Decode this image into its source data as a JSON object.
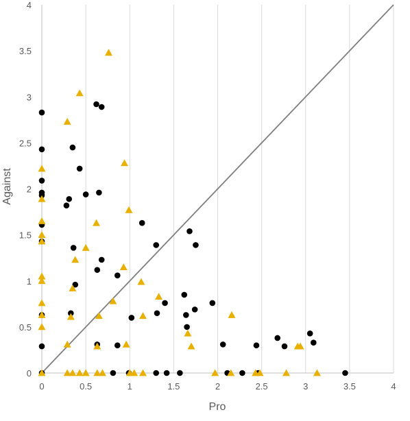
{
  "chart_data": {
    "type": "scatter",
    "xlabel": "Pro",
    "ylabel": "Against",
    "xlim": [
      0,
      4
    ],
    "ylim": [
      0,
      4
    ],
    "x_ticks": [
      "0",
      "0.5",
      "1",
      "1.5",
      "2",
      "2.5",
      "3",
      "3.5",
      "4"
    ],
    "y_ticks": [
      "0",
      "0.5",
      "1",
      "1.5",
      "2",
      "2.5",
      "3",
      "3.5",
      "4"
    ],
    "grid": "vertical",
    "reference_line": {
      "from": [
        0,
        0
      ],
      "to": [
        4,
        4
      ],
      "color": "#7f7f7f"
    },
    "colors": {
      "circle": "#000000",
      "triangle": "#e8b000",
      "grid": "#d9d9d9",
      "axis": "#bfbfbf",
      "text": "#595959"
    },
    "series": [
      {
        "marker": "circle",
        "points": [
          [
            0.0,
            2.83
          ],
          [
            0.0,
            2.43
          ],
          [
            0.0,
            2.09
          ],
          [
            0.0,
            1.96
          ],
          [
            0.0,
            1.93
          ],
          [
            0.0,
            1.61
          ],
          [
            0.0,
            1.43
          ],
          [
            0.0,
            0.63
          ],
          [
            0.0,
            0.29
          ],
          [
            0.0,
            0.0
          ],
          [
            0.28,
            1.82
          ],
          [
            0.31,
            1.89
          ],
          [
            0.33,
            0.65
          ],
          [
            0.35,
            2.45
          ],
          [
            0.36,
            1.36
          ],
          [
            0.38,
            0.96
          ],
          [
            0.43,
            2.22
          ],
          [
            0.5,
            1.94
          ],
          [
            0.62,
            2.92
          ],
          [
            0.63,
            1.12
          ],
          [
            0.63,
            0.31
          ],
          [
            0.65,
            1.96
          ],
          [
            0.68,
            1.23
          ],
          [
            0.68,
            2.89
          ],
          [
            0.81,
            0.0
          ],
          [
            0.86,
            1.06
          ],
          [
            0.86,
            0.3
          ],
          [
            0.99,
            0.0
          ],
          [
            1.02,
            0.6
          ],
          [
            1.14,
            1.63
          ],
          [
            1.3,
            1.39
          ],
          [
            1.31,
            0.65
          ],
          [
            1.3,
            0.0
          ],
          [
            1.4,
            0.76
          ],
          [
            1.42,
            0.0
          ],
          [
            1.57,
            0.0
          ],
          [
            1.62,
            0.85
          ],
          [
            1.64,
            0.63
          ],
          [
            1.65,
            0.5
          ],
          [
            1.68,
            1.54
          ],
          [
            1.74,
            0.69
          ],
          [
            1.75,
            1.39
          ],
          [
            1.94,
            0.76
          ],
          [
            2.06,
            0.31
          ],
          [
            2.11,
            0.0
          ],
          [
            2.28,
            0.0
          ],
          [
            2.44,
            0.3
          ],
          [
            2.46,
            0.0
          ],
          [
            2.68,
            0.38
          ],
          [
            2.76,
            0.29
          ],
          [
            3.05,
            0.43
          ],
          [
            3.09,
            0.33
          ],
          [
            3.45,
            0.0
          ]
        ]
      },
      {
        "marker": "triangle",
        "points": [
          [
            0.0,
            2.22
          ],
          [
            0.0,
            1.89
          ],
          [
            0.0,
            1.65
          ],
          [
            0.0,
            1.5
          ],
          [
            0.0,
            1.43
          ],
          [
            0.0,
            1.05
          ],
          [
            0.0,
            1.0
          ],
          [
            0.0,
            0.76
          ],
          [
            0.0,
            0.63
          ],
          [
            0.0,
            0.5
          ],
          [
            0.0,
            0.0
          ],
          [
            0.29,
            2.73
          ],
          [
            0.29,
            0.31
          ],
          [
            0.29,
            0.0
          ],
          [
            0.33,
            0.61
          ],
          [
            0.35,
            0.92
          ],
          [
            0.35,
            0.0
          ],
          [
            0.38,
            1.23
          ],
          [
            0.43,
            3.04
          ],
          [
            0.43,
            0.0
          ],
          [
            0.5,
            1.36
          ],
          [
            0.5,
            0.0
          ],
          [
            0.62,
            1.63
          ],
          [
            0.63,
            0.29
          ],
          [
            0.63,
            0.0
          ],
          [
            0.65,
            0.62
          ],
          [
            0.69,
            0.0
          ],
          [
            0.76,
            3.48
          ],
          [
            0.81,
            0.78
          ],
          [
            0.93,
            1.15
          ],
          [
            0.94,
            2.28
          ],
          [
            0.96,
            0.31
          ],
          [
            0.99,
            1.77
          ],
          [
            1.0,
            0.0
          ],
          [
            1.05,
            0.0
          ],
          [
            1.13,
            0.99
          ],
          [
            1.15,
            0.62
          ],
          [
            1.15,
            0.0
          ],
          [
            1.33,
            0.83
          ],
          [
            1.66,
            0.43
          ],
          [
            1.7,
            0.29
          ],
          [
            1.97,
            0.0
          ],
          [
            2.15,
            0.0
          ],
          [
            2.16,
            0.63
          ],
          [
            2.43,
            0.0
          ],
          [
            2.48,
            0.0
          ],
          [
            2.78,
            0.0
          ],
          [
            2.91,
            0.29
          ],
          [
            2.94,
            0.29
          ],
          [
            3.13,
            0.0
          ]
        ]
      }
    ]
  }
}
